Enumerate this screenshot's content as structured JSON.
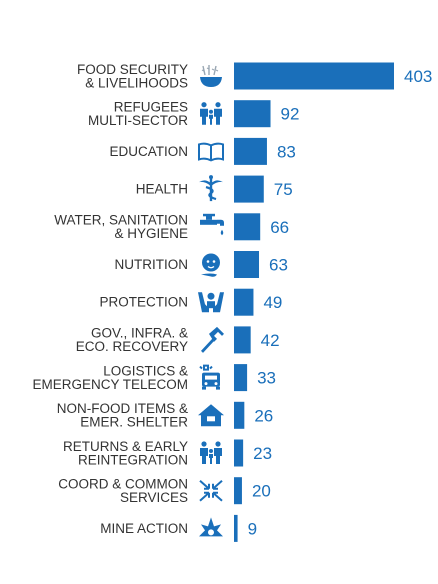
{
  "chart_data": {
    "type": "bar",
    "orientation": "horizontal",
    "bar_color": "#1a6fba",
    "label_color": "#333333",
    "value_color": "#1a6fba",
    "grid": false,
    "legend": "none",
    "xlim": [
      0,
      403
    ],
    "categories": [
      {
        "lines": [
          "FOOD SECURITY",
          "& LIVELIHOODS"
        ],
        "icon": "bowl-wheat-icon",
        "value": 403
      },
      {
        "lines": [
          "REFUGEES",
          "MULTI-SECTOR"
        ],
        "icon": "family-icon",
        "value": 92
      },
      {
        "lines": [
          "EDUCATION"
        ],
        "icon": "open-book-icon",
        "value": 83
      },
      {
        "lines": [
          "HEALTH"
        ],
        "icon": "caduceus-icon",
        "value": 75
      },
      {
        "lines": [
          "WATER, SANITATION",
          "& HYGIENE"
        ],
        "icon": "water-tap-icon",
        "value": 66
      },
      {
        "lines": [
          "NUTRITION"
        ],
        "icon": "child-spoon-icon",
        "value": 63
      },
      {
        "lines": [
          "PROTECTION"
        ],
        "icon": "hands-person-icon",
        "value": 49
      },
      {
        "lines": [
          "GOV., INFRA. &",
          "ECO. RECOVERY"
        ],
        "icon": "hammer-icon",
        "value": 42
      },
      {
        "lines": [
          "LOGISTICS &",
          "EMERGENCY TELECOM"
        ],
        "icon": "truck-antenna-icon",
        "value": 33
      },
      {
        "lines": [
          "NON-FOOD ITEMS &",
          "EMER. SHELTER"
        ],
        "icon": "house-icon",
        "value": 26
      },
      {
        "lines": [
          "RETURNS & EARLY",
          "REINTEGRATION"
        ],
        "icon": "family-icon",
        "value": 23
      },
      {
        "lines": [
          "COORD & COMMON",
          "SERVICES"
        ],
        "icon": "arrows-converge-icon",
        "value": 20
      },
      {
        "lines": [
          "MINE ACTION"
        ],
        "icon": "explosion-icon",
        "value": 9
      }
    ]
  }
}
